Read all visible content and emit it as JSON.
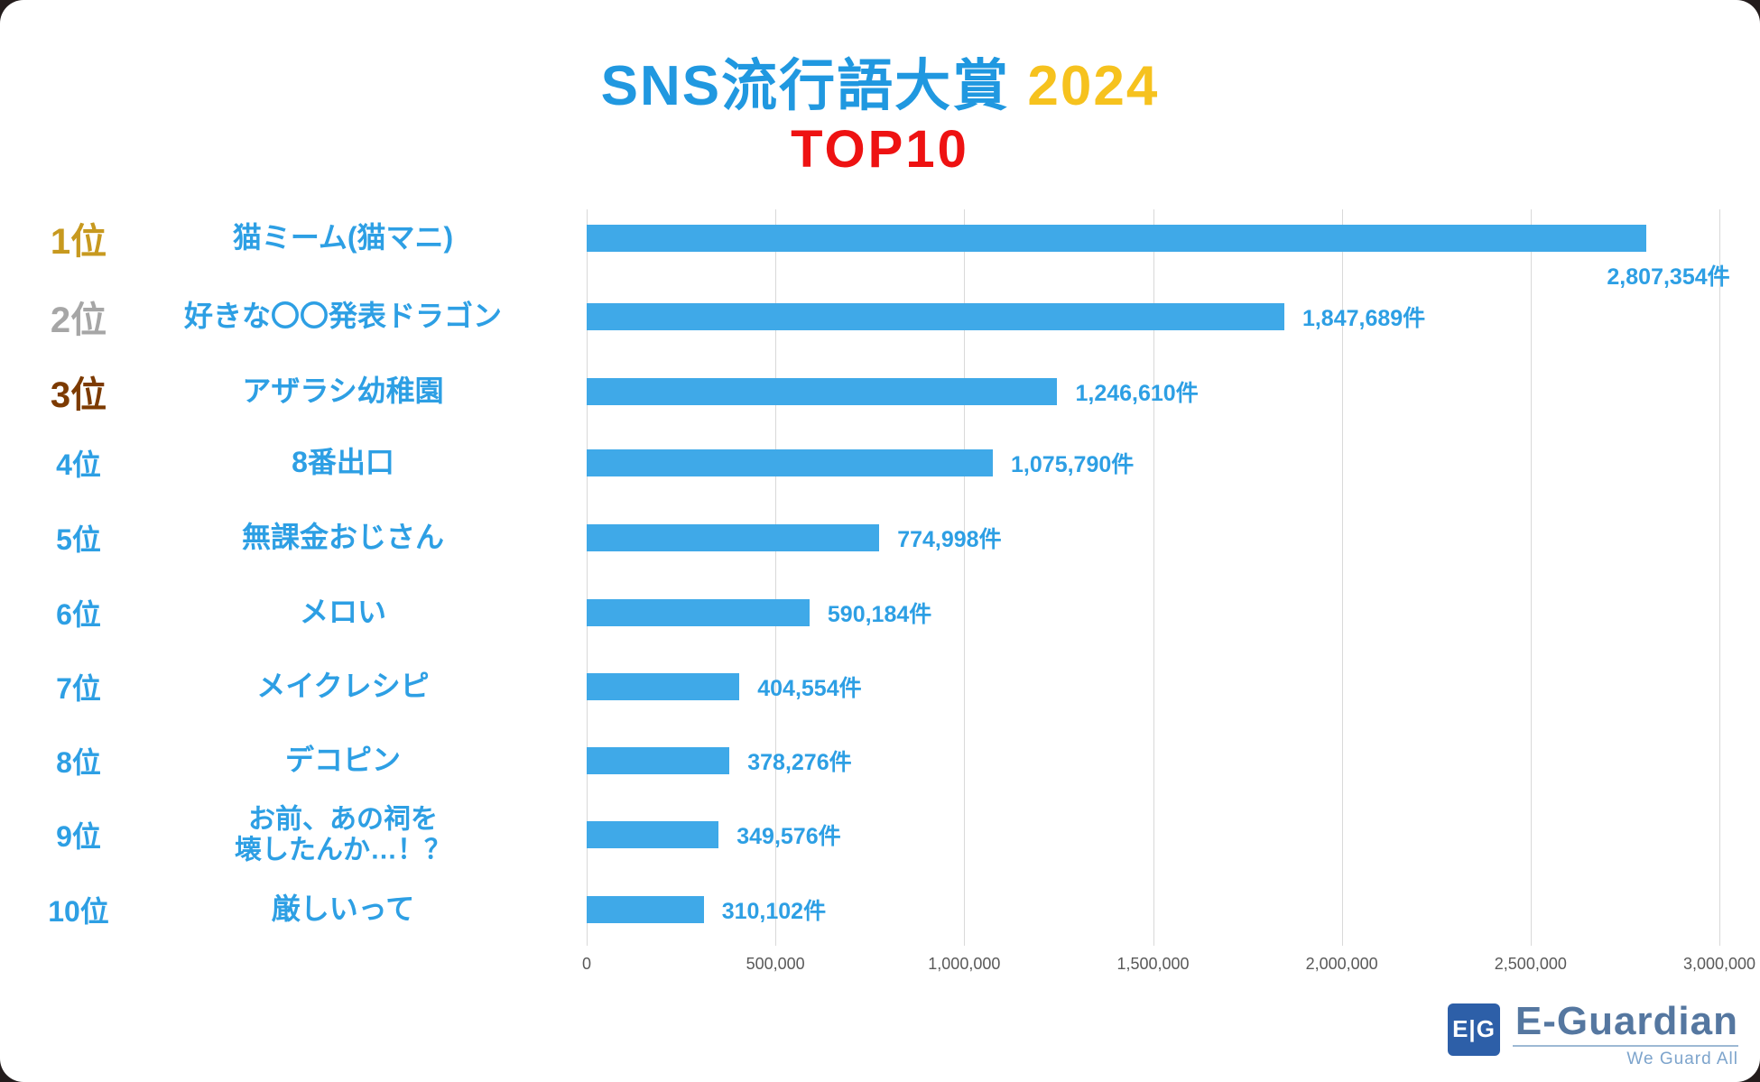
{
  "title": {
    "main": "SNS流行語大賞",
    "year": "2024",
    "sub": "TOP10",
    "main_color": "#2098e0",
    "year_color": "#f6c21e",
    "sub_color": "#ee1212"
  },
  "chart_data": {
    "type": "bar",
    "orientation": "horizontal",
    "title": "SNS流行語大賞 2024 TOP10",
    "xlabel": "",
    "ylabel": "",
    "xlim": [
      0,
      3000000
    ],
    "grid": true,
    "bar_color": "#3fa9e8",
    "text_color": "#2d9fe4",
    "tick_color": "#595959",
    "gridline_color": "#d9d9d9",
    "x_ticks": [
      "0",
      "500,000",
      "1,000,000",
      "1,500,000",
      "2,000,000",
      "2,500,000",
      "3,000,000"
    ],
    "x_tick_values": [
      0,
      500000,
      1000000,
      1500000,
      2000000,
      2500000,
      3000000
    ],
    "items": [
      {
        "rank": "1位",
        "label": "猫ミーム(猫マニ)",
        "value": 2807354,
        "value_label": "2,807,354件",
        "rank_color": "#c7991f"
      },
      {
        "rank": "2位",
        "label": "好きな〇〇発表ドラゴン",
        "value": 1847689,
        "value_label": "1,847,689件",
        "rank_color": "#a6a6a6"
      },
      {
        "rank": "3位",
        "label": "アザラシ幼稚園",
        "value": 1246610,
        "value_label": "1,246,610件",
        "rank_color": "#7c3a00"
      },
      {
        "rank": "4位",
        "label": "8番出口",
        "value": 1075790,
        "value_label": "1,075,790件",
        "rank_color": "#2d9fe4"
      },
      {
        "rank": "5位",
        "label": "無課金おじさん",
        "value": 774998,
        "value_label": "774,998件",
        "rank_color": "#2d9fe4"
      },
      {
        "rank": "6位",
        "label": "メロい",
        "value": 590184,
        "value_label": "590,184件",
        "rank_color": "#2d9fe4"
      },
      {
        "rank": "7位",
        "label": "メイクレシピ",
        "value": 404554,
        "value_label": "404,554件",
        "rank_color": "#2d9fe4"
      },
      {
        "rank": "8位",
        "label": "デコピン",
        "value": 378276,
        "value_label": "378,276件",
        "rank_color": "#2d9fe4"
      },
      {
        "rank": "9位",
        "label": "お前、あの祠を\n壊したんか…！？",
        "value": 349576,
        "value_label": "349,576件",
        "rank_color": "#2d9fe4"
      },
      {
        "rank": "10位",
        "label": "厳しいって",
        "value": 310102,
        "value_label": "310,102件",
        "rank_color": "#2d9fe4"
      }
    ]
  },
  "footer": {
    "logo_text": "E|G",
    "brand": "E-Guardian",
    "tagline": "We Guard All",
    "logo_bg_color": "#2d5fa8",
    "brand_color": "#5577a0",
    "tagline_color": "#7da4cc",
    "line_color": "#9db9d4"
  }
}
